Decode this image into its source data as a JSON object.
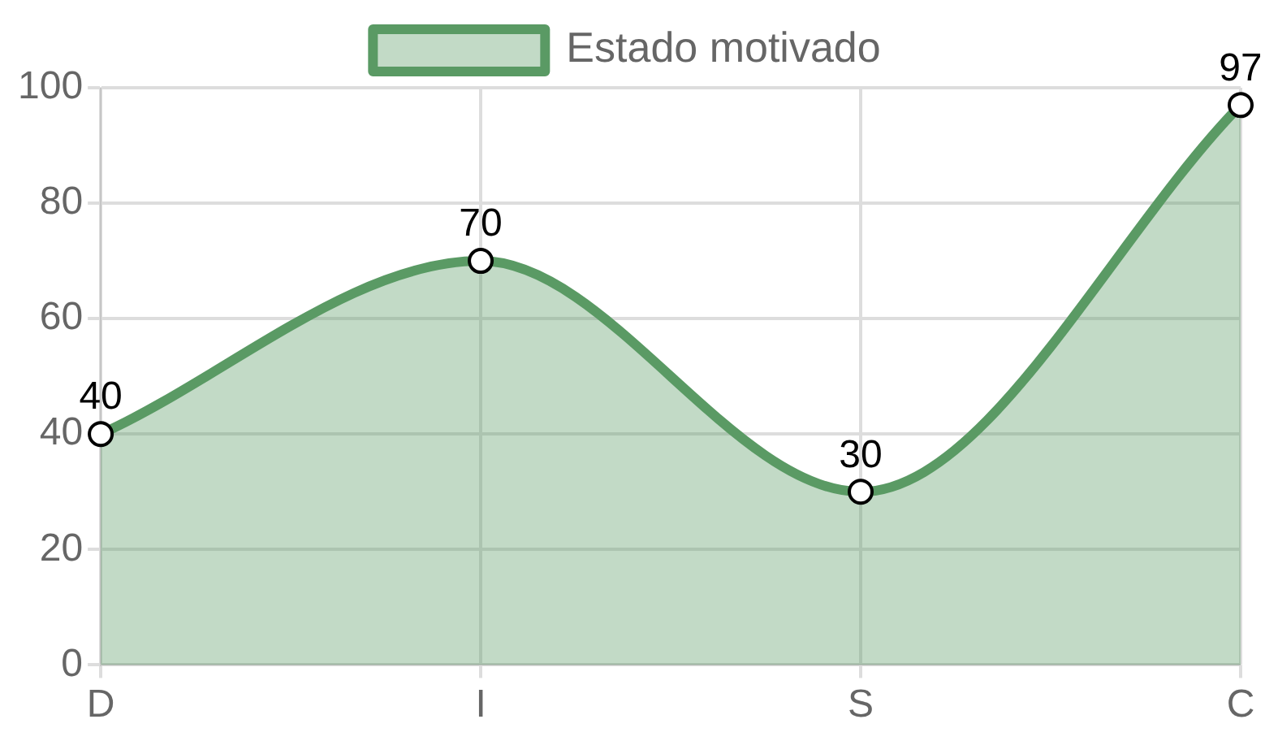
{
  "chart_data": {
    "type": "area",
    "categories": [
      "D",
      "I",
      "S",
      "C"
    ],
    "series": [
      {
        "name": "Estado motivado",
        "color": "#5a9a64",
        "values": [
          40,
          70,
          30,
          97
        ]
      }
    ],
    "ylim": [
      0,
      100
    ],
    "yticks": [
      0,
      20,
      40,
      60,
      80,
      100
    ],
    "grid": true,
    "legend": "top",
    "marker": "circle",
    "data_labels": true
  }
}
